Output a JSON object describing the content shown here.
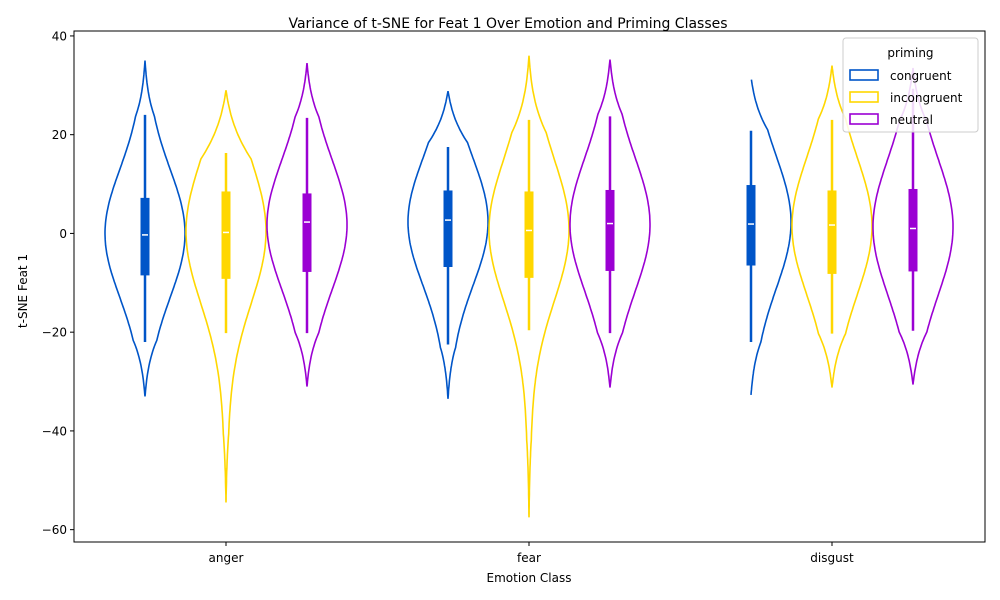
{
  "chart_data": {
    "type": "violin",
    "title": "Variance of t-SNE for Feat 1 Over Emotion and Priming Classes",
    "xlabel": "Emotion Class",
    "ylabel": "t-SNE Feat 1",
    "categories": [
      "anger",
      "fear",
      "disgust"
    ],
    "ylim": [
      -62.5,
      41
    ],
    "yticks": [
      40,
      20,
      0,
      -20,
      -40,
      -60
    ],
    "ytick_labels": [
      "40",
      "20",
      "0",
      "−20",
      "−40",
      "−60"
    ],
    "legend": {
      "title": "priming",
      "position": "top-right"
    },
    "series": [
      {
        "name": "congruent",
        "color": "#0055c8",
        "stats": [
          {
            "category": "anger",
            "min": -33,
            "max": 35,
            "whisker_low": -22,
            "whisker_high": 24,
            "q1": -8.5,
            "median": -0.3,
            "q3": 7.2
          },
          {
            "category": "fear",
            "min": -33.5,
            "max": 28.8,
            "whisker_low": -22.5,
            "whisker_high": 17.5,
            "q1": -6.8,
            "median": 2.7,
            "q3": 8.7
          },
          {
            "category": "disgust",
            "min": -32.7,
            "max": 31.7,
            "whisker_low": -22,
            "whisker_high": 20.8,
            "q1": -6.5,
            "median": 1.9,
            "q3": 9.8
          }
        ]
      },
      {
        "name": "incongruent",
        "color": "#ffd700",
        "stats": [
          {
            "category": "anger",
            "min": -54.5,
            "max": 29,
            "whisker_low": -20.2,
            "whisker_high": 16.3,
            "q1": -9.2,
            "median": 0.2,
            "q3": 8.5
          },
          {
            "category": "fear",
            "min": -57.5,
            "max": 36,
            "whisker_low": -19.6,
            "whisker_high": 23,
            "q1": -9,
            "median": 0.6,
            "q3": 8.5
          },
          {
            "category": "disgust",
            "min": -31.2,
            "max": 34,
            "whisker_low": -20.3,
            "whisker_high": 23,
            "q1": -8.2,
            "median": 1.7,
            "q3": 8.7
          }
        ]
      },
      {
        "name": "neutral",
        "color": "#9b00d3",
        "stats": [
          {
            "category": "anger",
            "min": -31,
            "max": 34.5,
            "whisker_low": -20.2,
            "whisker_high": 23.4,
            "q1": -7.8,
            "median": 2.3,
            "q3": 8.1
          },
          {
            "category": "fear",
            "min": -31.2,
            "max": 35.2,
            "whisker_low": -20.2,
            "whisker_high": 23.7,
            "q1": -7.6,
            "median": 2,
            "q3": 8.8
          },
          {
            "category": "disgust",
            "min": -30.6,
            "max": 33.5,
            "whisker_low": -19.7,
            "whisker_high": 29.3,
            "q1": -7.7,
            "median": 1,
            "q3": 9
          }
        ]
      }
    ]
  }
}
